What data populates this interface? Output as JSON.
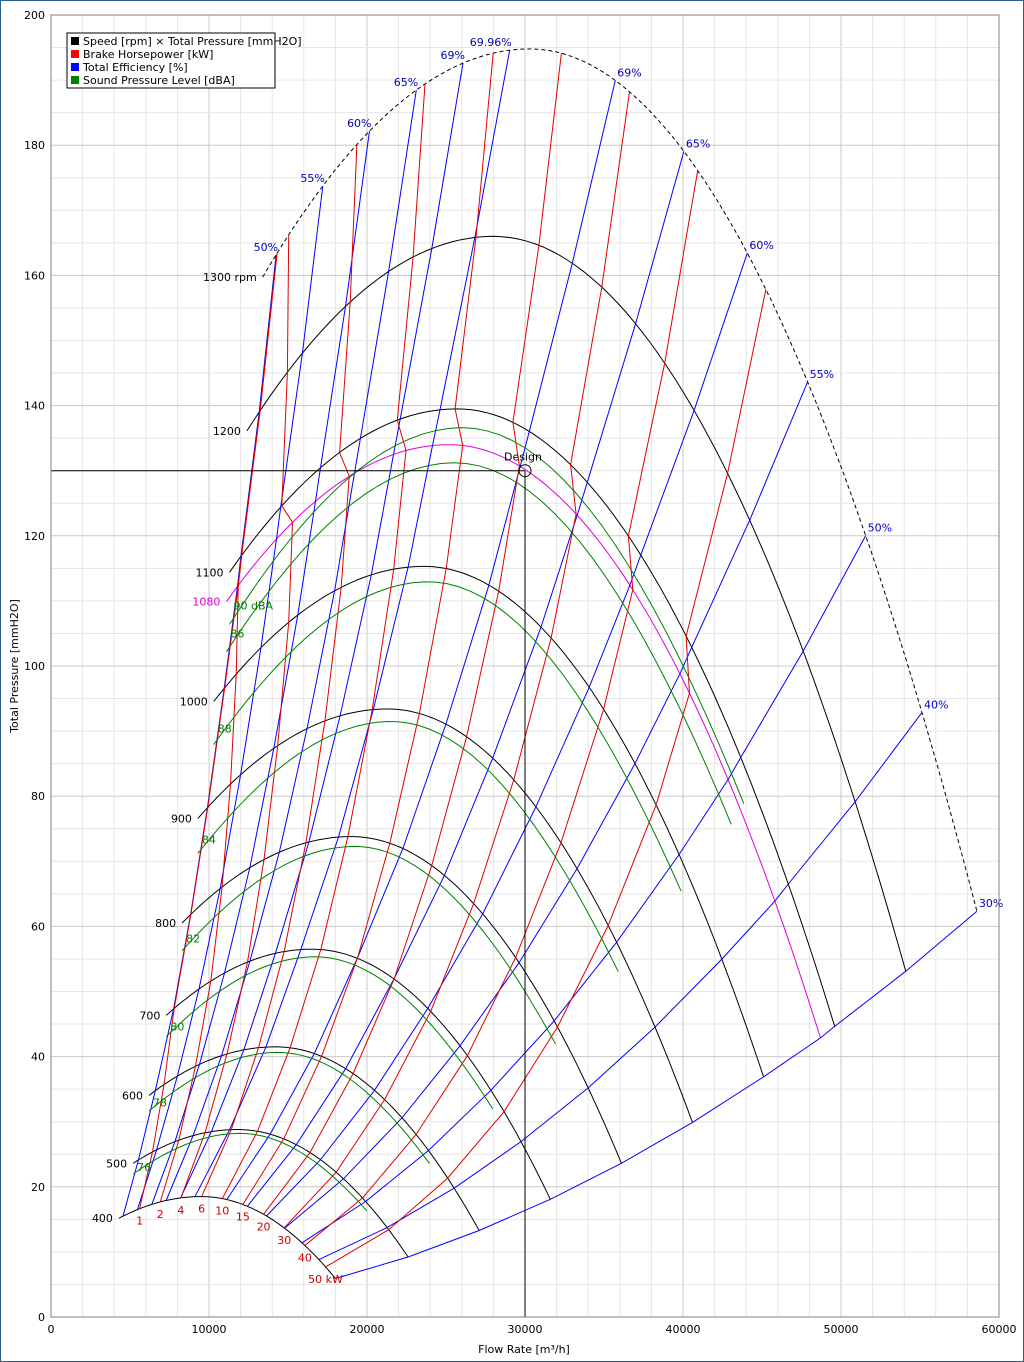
{
  "chart_data": {
    "type": "line",
    "title": "",
    "xlabel": "Flow Rate  [m³/h]",
    "ylabel": "Total Pressure  [mmH2O]",
    "xlim": [
      0,
      60000
    ],
    "ylim": [
      0,
      200
    ],
    "x_ticks": [
      "0",
      "10000",
      "20000",
      "30000",
      "40000",
      "50000",
      "60000"
    ],
    "y_ticks": [
      "0",
      "20",
      "40",
      "60",
      "80",
      "100",
      "120",
      "140",
      "160",
      "180",
      "200"
    ],
    "grid": true,
    "legend_position": "top-left",
    "legend": [
      {
        "label": "Speed [rpm] × Total Pressure [mmH2O]",
        "color": "#000000"
      },
      {
        "label": "Brake Horsepower [kW]",
        "color": "#ff0000"
      },
      {
        "label": "Total Efficiency [%]",
        "color": "#0000ff"
      },
      {
        "label": "Sound Pressure Level [dBA]",
        "color": "#008000"
      }
    ],
    "design_point": {
      "label": "Design",
      "x": 30000,
      "y": 130
    },
    "speed_curves": [
      {
        "label": "400",
        "a": 4300,
        "b": 18000,
        "peak": 18.5,
        "pk": 9500
      },
      {
        "label": "500",
        "a": 5200,
        "b": 22600,
        "peak": 28.8,
        "pk": 11800
      },
      {
        "label": "600",
        "a": 6200,
        "b": 27100,
        "peak": 41.5,
        "pk": 14200
      },
      {
        "label": "700",
        "a": 7300,
        "b": 31600,
        "peak": 56.5,
        "pk": 16500
      },
      {
        "label": "800",
        "a": 8300,
        "b": 36100,
        "peak": 73.8,
        "pk": 19000
      },
      {
        "label": "900",
        "a": 9300,
        "b": 40600,
        "peak": 93.4,
        "pk": 21300
      },
      {
        "label": "1000",
        "a": 10300,
        "b": 45100,
        "peak": 115.3,
        "pk": 23600
      },
      {
        "label": "1080",
        "a": 11100,
        "b": 48700,
        "peak": 134.0,
        "pk": 25200,
        "color": "#e000e0"
      },
      {
        "label": "1100",
        "a": 11300,
        "b": 49600,
        "peak": 139.5,
        "pk": 25700
      },
      {
        "label": "1200",
        "a": 12400,
        "b": 54100,
        "peak": 166.0,
        "pk": 28000
      },
      {
        "label": "1300 rpm",
        "a": 13400,
        "b": 58600,
        "peak": 194.8,
        "pk": 30300,
        "dashed": true
      }
    ],
    "efficiency_lines": [
      {
        "label": "50%",
        "left": true
      },
      {
        "label": "55%",
        "left": true
      },
      {
        "label": "60%",
        "left": true
      },
      {
        "label": "65%",
        "left": true
      },
      {
        "label": "69%",
        "left": true
      },
      {
        "label": "69.96%",
        "left": true
      },
      {
        "label": "69%",
        "left": false
      },
      {
        "label": "65%",
        "left": false
      },
      {
        "label": "60%",
        "left": false
      },
      {
        "label": "55%",
        "left": false
      },
      {
        "label": "50%",
        "left": false
      },
      {
        "label": "40%",
        "left": false
      },
      {
        "label": "30%",
        "left": false
      }
    ],
    "power_labels": [
      "1",
      "2",
      "4",
      "6",
      "10",
      "15",
      "20",
      "30",
      "40",
      "50 kW"
    ],
    "sound_labels": [
      "76",
      "78",
      "80",
      "82",
      "84",
      "88",
      "86",
      "90 dBA"
    ]
  }
}
